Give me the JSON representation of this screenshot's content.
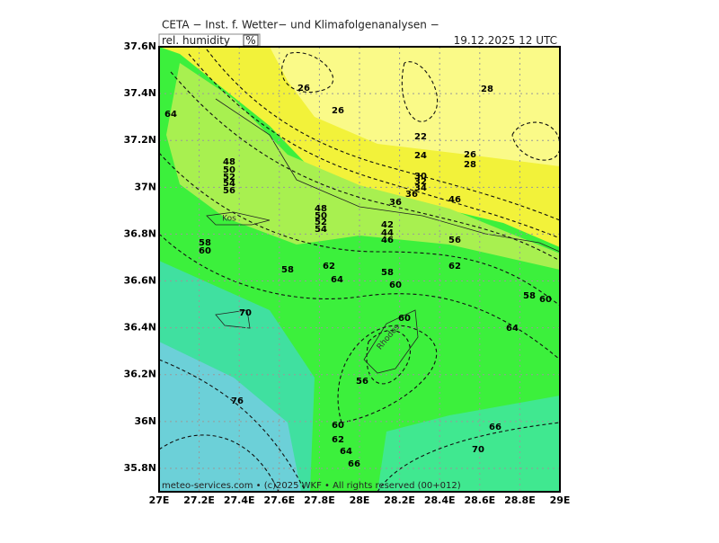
{
  "header": {
    "title": "CETA − Inst. f. Wetter− und Klimafolgenanalysen −",
    "parameter": "rel. humidity",
    "unit": "%",
    "date": "19.12.2025 12 UTC"
  },
  "map": {
    "xlim": [
      27,
      29
    ],
    "ylim": [
      35.7,
      37.6
    ],
    "xticks": [
      {
        "value": 27,
        "label": "27E"
      },
      {
        "value": 27.2,
        "label": "27.2E"
      },
      {
        "value": 27.4,
        "label": "27.4E"
      },
      {
        "value": 27.6,
        "label": "27.6E"
      },
      {
        "value": 27.8,
        "label": "27.8E"
      },
      {
        "value": 28,
        "label": "28E"
      },
      {
        "value": 28.2,
        "label": "28.2E"
      },
      {
        "value": 28.4,
        "label": "28.4E"
      },
      {
        "value": 28.6,
        "label": "28.6E"
      },
      {
        "value": 28.8,
        "label": "28.8E"
      },
      {
        "value": 29,
        "label": "29E"
      }
    ],
    "yticks": [
      {
        "value": 37.6,
        "label": "37.6N"
      },
      {
        "value": 37.4,
        "label": "37.4N"
      },
      {
        "value": 37.2,
        "label": "37.2N"
      },
      {
        "value": 37,
        "label": "37N"
      },
      {
        "value": 36.8,
        "label": "36.8N"
      },
      {
        "value": 36.6,
        "label": "36.6N"
      },
      {
        "value": 36.4,
        "label": "36.4N"
      },
      {
        "value": 36.2,
        "label": "36.2N"
      },
      {
        "value": 36,
        "label": "36N"
      },
      {
        "value": 35.8,
        "label": "35.8N"
      }
    ],
    "contour_labels": [
      26,
      26,
      28,
      64,
      22,
      24,
      26,
      28,
      30,
      32,
      34,
      36,
      36,
      46,
      48,
      50,
      52,
      54,
      56,
      48,
      50,
      52,
      54,
      42,
      44,
      46,
      58,
      60,
      56,
      58,
      62,
      62,
      64,
      58,
      60,
      58,
      60,
      70,
      60,
      64,
      56,
      76,
      60,
      66,
      62,
      64,
      70,
      66
    ],
    "places": [
      "Kos",
      "Rhodos"
    ]
  },
  "footer": "meteo-services.com • (c)2025 WKF • All rights reserved (00+012)"
}
